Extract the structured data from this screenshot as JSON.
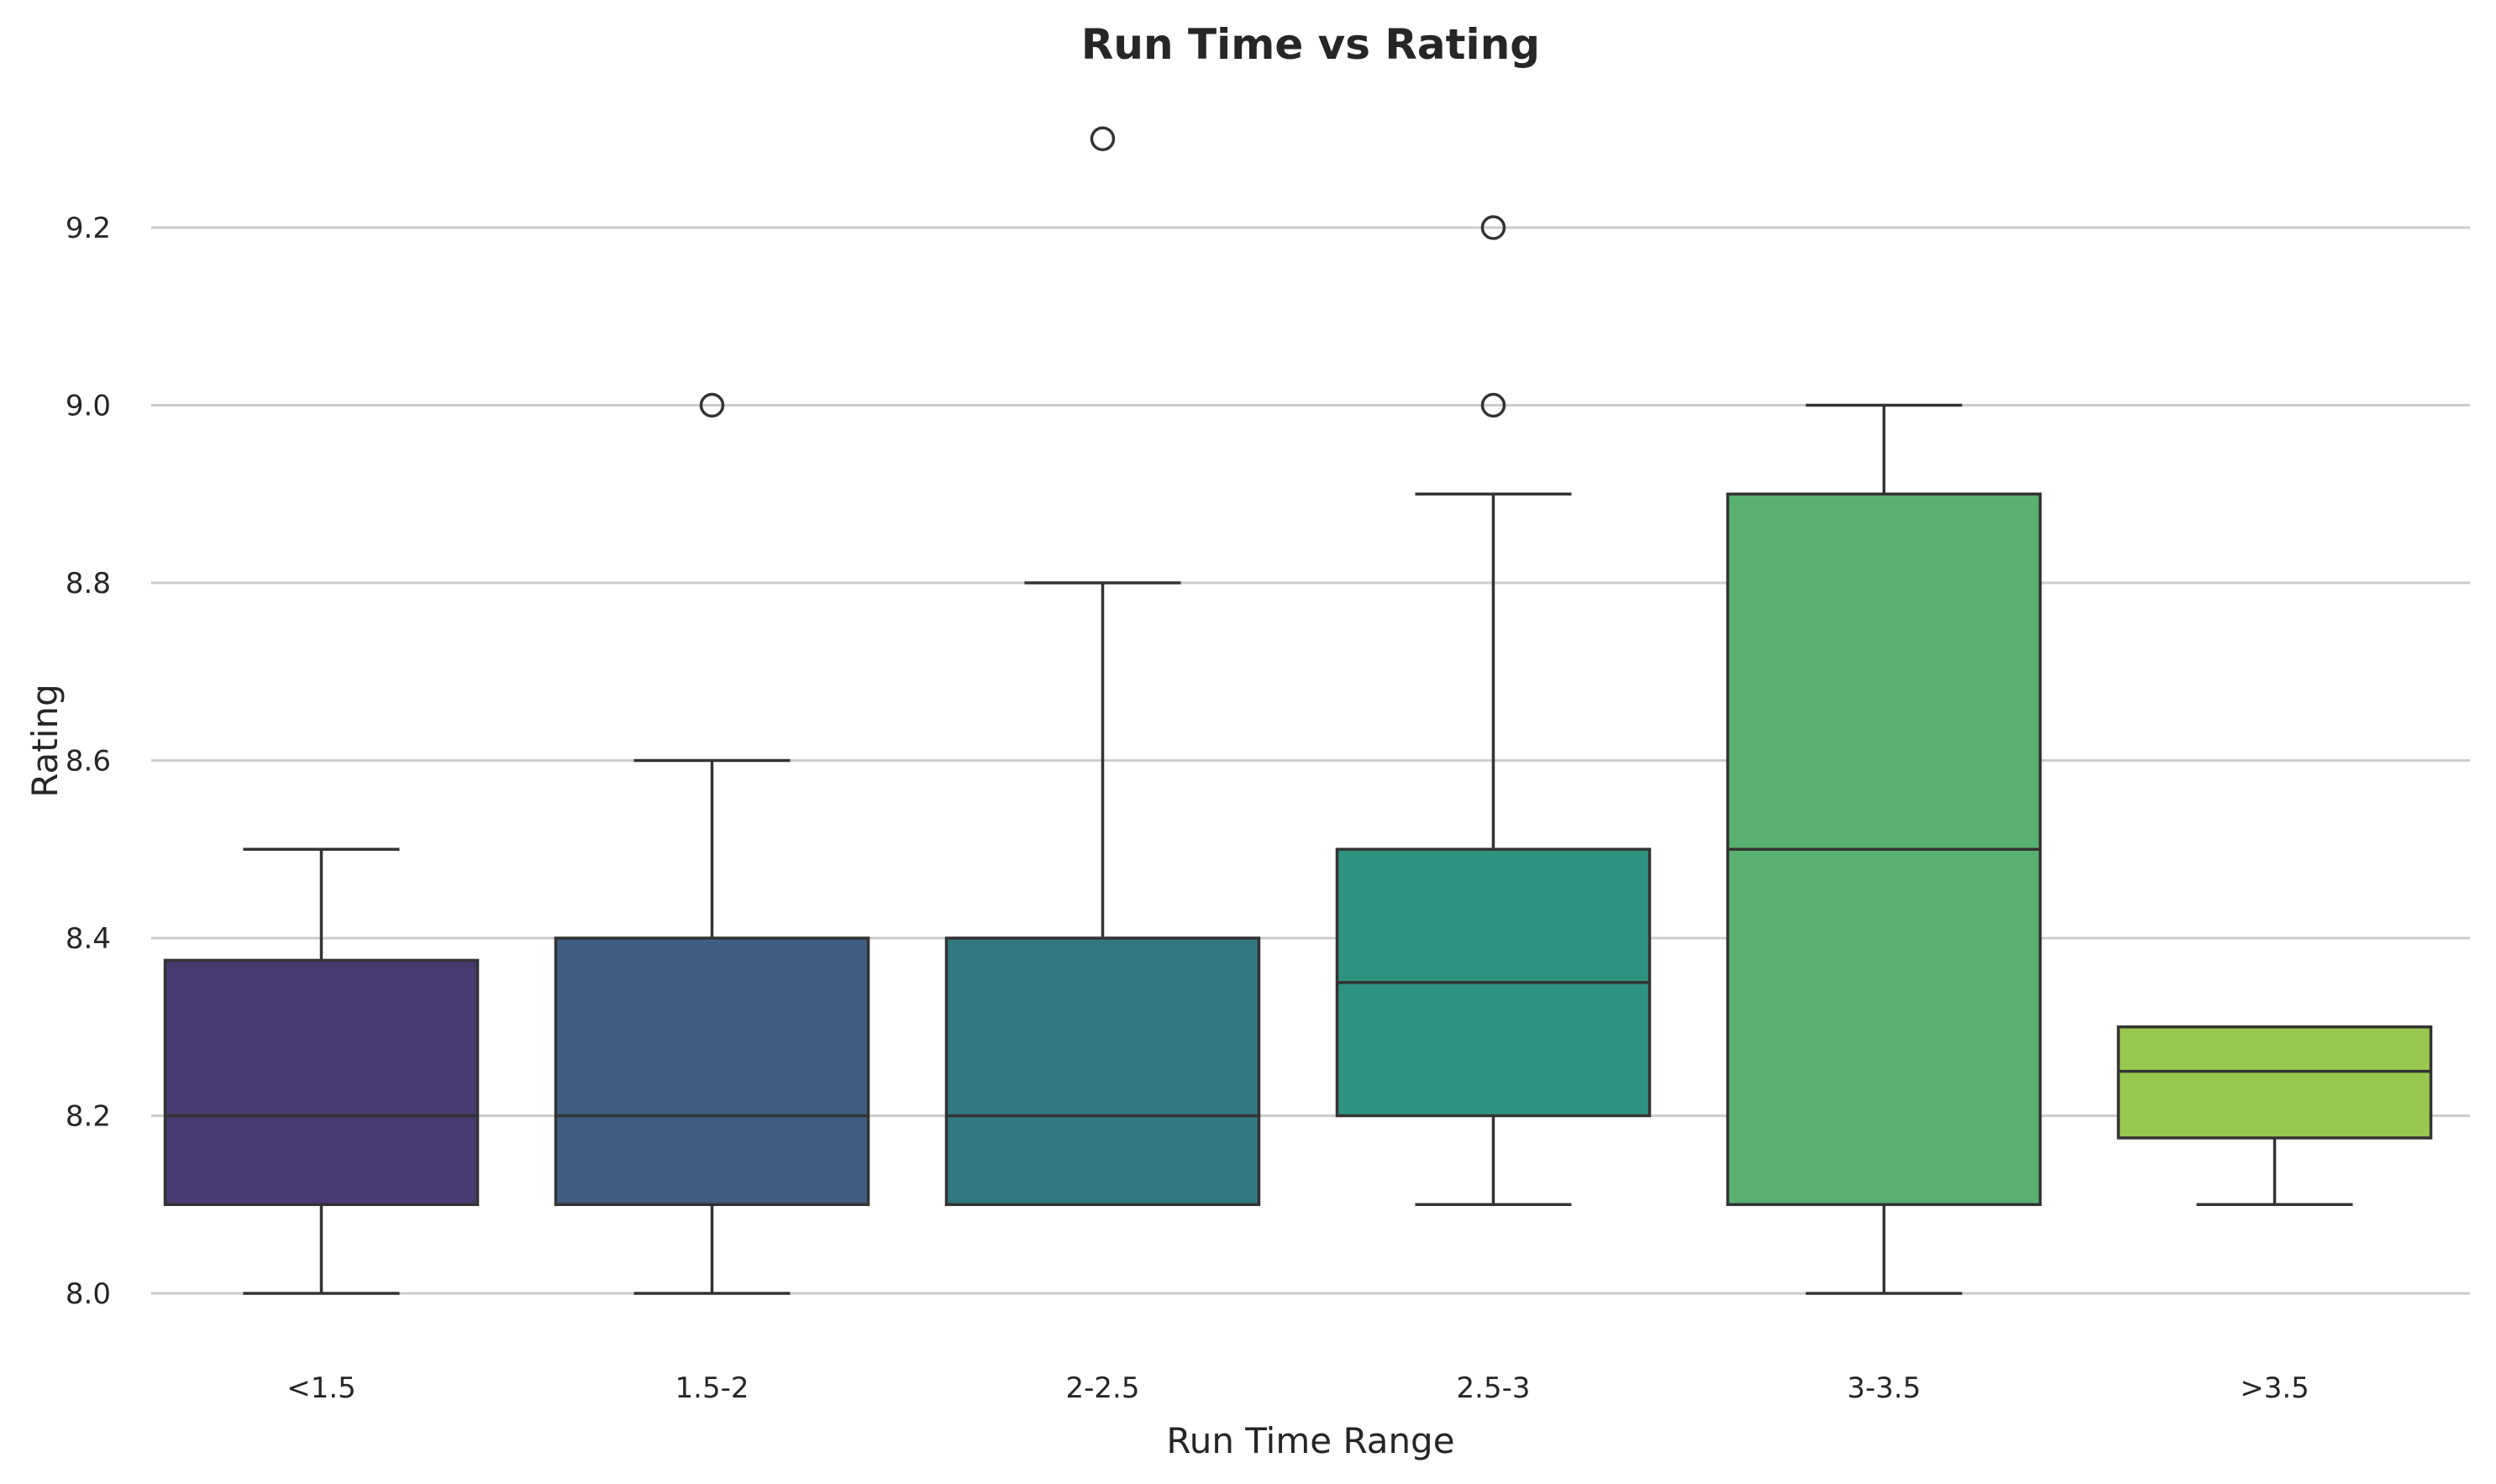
{
  "chart_data": {
    "type": "box",
    "title": "Run Time vs Rating",
    "xlabel": "Run Time Range",
    "ylabel": "Rating",
    "ylim": [
      7.94,
      9.34
    ],
    "yticks": [
      "8.0",
      "8.2",
      "8.4",
      "8.6",
      "8.8",
      "9.0",
      "9.2"
    ],
    "grid": "horizontal",
    "legend": "none",
    "categories": [
      "<1.5",
      "1.5-2",
      "2-2.5",
      "2.5-3",
      "3-3.5",
      ">3.5"
    ],
    "series": [
      {
        "category": "<1.5",
        "whisker_low": 8.0,
        "q1": 8.1,
        "median": 8.2,
        "q3": 8.375,
        "whisker_high": 8.5,
        "outliers": [],
        "color": "#483a70"
      },
      {
        "category": "1.5-2",
        "whisker_low": 8.0,
        "q1": 8.1,
        "median": 8.2,
        "q3": 8.4,
        "whisker_high": 8.6,
        "outliers": [
          9.0
        ],
        "color": "#3f5e82"
      },
      {
        "category": "2-2.5",
        "whisker_low": 8.1,
        "q1": 8.1,
        "median": 8.2,
        "q3": 8.4,
        "whisker_high": 8.8,
        "outliers": [
          9.3
        ],
        "color": "#327881"
      },
      {
        "category": "2.5-3",
        "whisker_low": 8.1,
        "q1": 8.2,
        "median": 8.35,
        "q3": 8.5,
        "whisker_high": 8.9,
        "outliers": [
          9.0,
          9.2
        ],
        "color": "#2f9381"
      },
      {
        "category": "3-3.5",
        "whisker_low": 8.0,
        "q1": 8.1,
        "median": 8.5,
        "q3": 8.9,
        "whisker_high": 9.0,
        "outliers": [],
        "color": "#58b071"
      },
      {
        "category": ">3.5",
        "whisker_low": 8.1,
        "q1": 8.175,
        "median": 8.25,
        "q3": 8.3,
        "whisker_high": 8.3,
        "outliers": [],
        "color": "#99c84e"
      }
    ]
  }
}
